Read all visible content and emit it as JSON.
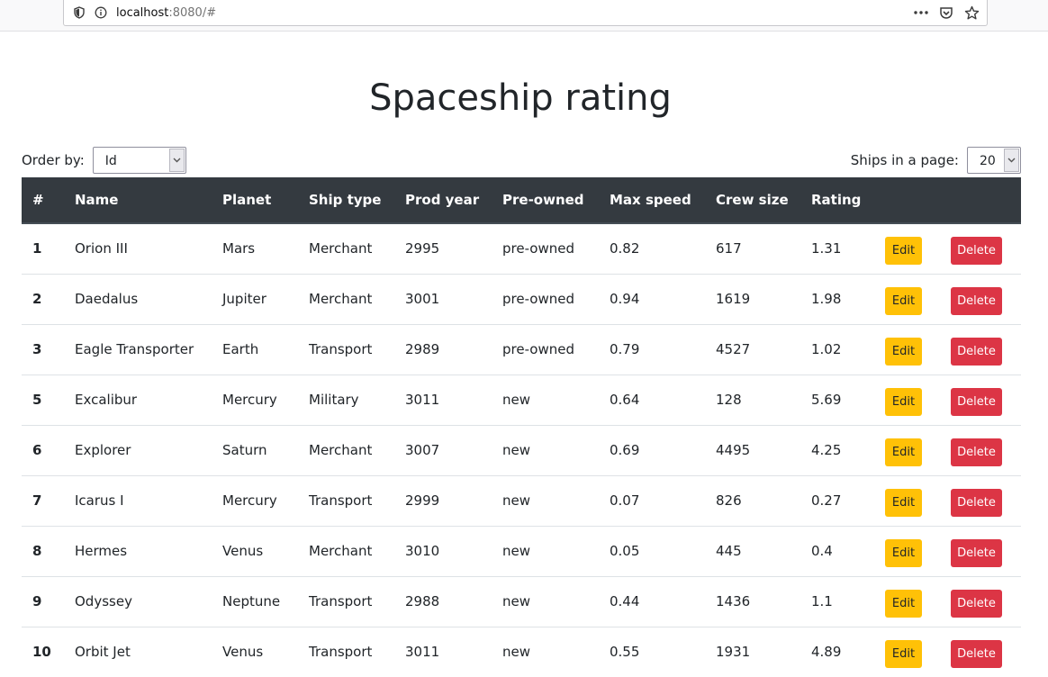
{
  "browser": {
    "url_host": "localhost",
    "url_rest": ":8080/#",
    "icons": [
      "shield-icon",
      "info-icon",
      "more-icon",
      "pocket-icon",
      "bookmark-star-icon"
    ]
  },
  "page": {
    "title": "Spaceship rating"
  },
  "controls": {
    "order_label": "Order by:",
    "order_value": "Id",
    "page_size_label": "Ships in a page:",
    "page_size_value": "20"
  },
  "table": {
    "headers": [
      "#",
      "Name",
      "Planet",
      "Ship type",
      "Prod year",
      "Pre-owned",
      "Max speed",
      "Crew size",
      "Rating"
    ],
    "edit_label": "Edit",
    "delete_label": "Delete",
    "rows": [
      {
        "id": "1",
        "name": "Orion III",
        "planet": "Mars",
        "type": "Merchant",
        "year": "2995",
        "owned": "pre-owned",
        "speed": "0.82",
        "crew": "617",
        "rating": "1.31"
      },
      {
        "id": "2",
        "name": "Daedalus",
        "planet": "Jupiter",
        "type": "Merchant",
        "year": "3001",
        "owned": "pre-owned",
        "speed": "0.94",
        "crew": "1619",
        "rating": "1.98"
      },
      {
        "id": "3",
        "name": "Eagle Transporter",
        "planet": "Earth",
        "type": "Transport",
        "year": "2989",
        "owned": "pre-owned",
        "speed": "0.79",
        "crew": "4527",
        "rating": "1.02"
      },
      {
        "id": "5",
        "name": "Excalibur",
        "planet": "Mercury",
        "type": "Military",
        "year": "3011",
        "owned": "new",
        "speed": "0.64",
        "crew": "128",
        "rating": "5.69"
      },
      {
        "id": "6",
        "name": "Explorer",
        "planet": "Saturn",
        "type": "Merchant",
        "year": "3007",
        "owned": "new",
        "speed": "0.69",
        "crew": "4495",
        "rating": "4.25"
      },
      {
        "id": "7",
        "name": "Icarus I",
        "planet": "Mercury",
        "type": "Transport",
        "year": "2999",
        "owned": "new",
        "speed": "0.07",
        "crew": "826",
        "rating": "0.27"
      },
      {
        "id": "8",
        "name": "Hermes",
        "planet": "Venus",
        "type": "Merchant",
        "year": "3010",
        "owned": "new",
        "speed": "0.05",
        "crew": "445",
        "rating": "0.4"
      },
      {
        "id": "9",
        "name": "Odyssey",
        "planet": "Neptune",
        "type": "Transport",
        "year": "2988",
        "owned": "new",
        "speed": "0.44",
        "crew": "1436",
        "rating": "1.1"
      },
      {
        "id": "10",
        "name": "Orbit Jet",
        "planet": "Venus",
        "type": "Transport",
        "year": "3011",
        "owned": "new",
        "speed": "0.55",
        "crew": "1931",
        "rating": "4.89"
      }
    ]
  },
  "colors": {
    "header_bg": "#343a40",
    "edit_bg": "#ffc107",
    "delete_bg": "#dc3545"
  }
}
